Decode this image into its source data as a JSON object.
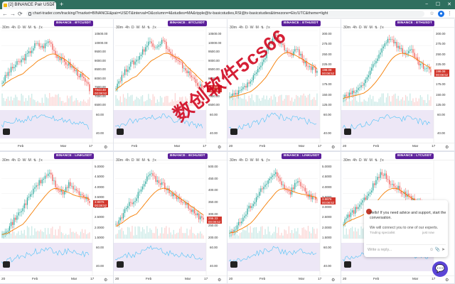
{
  "browser": {
    "tab_title": "[2] BINANCE Pair USDT",
    "url": "chart-trader.com/tracking/?market=BINANCE&pair=USDT&interval=D&column=4&studies=MA&ripple@tv-basicstudies,RSI@tv-basicstudies&timezone=Etc/UTC&theme=light",
    "new_tab": "+",
    "tab_close": "×",
    "back": "←",
    "forward": "→",
    "reload": "⟳",
    "minimize": "−",
    "maximize": "☐",
    "close": "✕"
  },
  "toolbar": {
    "items": [
      "30m",
      "4h",
      "D",
      "W",
      "M",
      "⇅",
      "ƒx"
    ]
  },
  "panels": [
    {
      "symbol": "BINANCE : BTCUSDT",
      "price_label": "7843.48",
      "sub_label": "00:08:52",
      "price_color": "#d1362c",
      "y_ticks": [
        "10500.00",
        "10000.00",
        "9500.00",
        "9000.00",
        "8500.00",
        "8000.00",
        "7500.00",
        "7000.00",
        "6500.00"
      ],
      "rsi_ticks": [
        "60.00",
        "40.00"
      ],
      "x_ticks": [
        "Feb",
        "Mar",
        "17"
      ]
    },
    {
      "symbol": "BINANCE : BTCUSDT",
      "price_label": "7843.48",
      "sub_label": "00:08:52",
      "price_color": "#d1362c",
      "y_ticks": [
        "10500.00",
        "10000.00",
        "9500.00",
        "9000.00",
        "8500.00",
        "8000.00",
        "7500.00",
        "7000.00",
        "6500.00"
      ],
      "rsi_ticks": [
        "60.00",
        "40.00"
      ],
      "x_ticks": [
        "Feb",
        "Mar",
        "17"
      ]
    },
    {
      "symbol": "BINANCE : ETHUSDT",
      "price_label": "198.08",
      "sub_label": "00:08:52",
      "price_color": "#d1362c",
      "y_ticks": [
        "300.00",
        "275.00",
        "250.00",
        "225.00",
        "200.00",
        "175.00",
        "150.00",
        "125.00"
      ],
      "rsi_ticks": [
        "60.00",
        "40.00"
      ],
      "x_ticks": [
        "20",
        "Feb",
        "Mar",
        "17"
      ]
    },
    {
      "symbol": "BINANCE : ETHUSDT",
      "price_label": "198.08",
      "sub_label": "00:08:52",
      "price_color": "#d1362c",
      "y_ticks": [
        "300.00",
        "275.00",
        "250.00",
        "225.00",
        "200.00",
        "175.00",
        "150.00",
        "125.00"
      ],
      "rsi_ticks": [
        "60.00",
        "40.00"
      ],
      "x_ticks": [
        "20",
        "Feb",
        "Mar",
        "17"
      ]
    },
    {
      "symbol": "BINANCE : LINKUSDT",
      "price_label": "3.9876",
      "sub_label": "00:08:52",
      "price_color": "#d1362c",
      "y_ticks": [
        "5.0000",
        "4.5000",
        "4.0000",
        "3.5000",
        "3.0000",
        "2.5000",
        "2.0000",
        "1.5000"
      ],
      "rsi_ticks": [
        "60.00",
        "40.00"
      ],
      "x_ticks": [
        "20",
        "Feb",
        "Mar",
        "17"
      ]
    },
    {
      "symbol": "BINANCE : BCHUSDT",
      "price_label": "266.33",
      "sub_label": "00:08:52",
      "price_color": "#d1362c",
      "y_ticks": [
        "500.00",
        "450.00",
        "400.00",
        "350.00",
        "300.00",
        "250.00",
        "200.00"
      ],
      "rsi_ticks": [
        "60.00",
        "40.00"
      ],
      "x_ticks": [
        "20",
        "Feb",
        "Mar",
        "17"
      ]
    },
    {
      "symbol": "BINANCE : LINKUSDT",
      "price_label": "3.9876",
      "sub_label": "00:08:52",
      "price_color": "#d1362c",
      "y_ticks": [
        "5.0000",
        "4.5000",
        "4.0000",
        "3.5000",
        "3.0000",
        "2.5000",
        "2.0000",
        "1.5000"
      ],
      "rsi_ticks": [
        "60.00",
        "40.00"
      ],
      "x_ticks": [
        "20",
        "Feb",
        "Mar",
        "17"
      ]
    },
    {
      "symbol": "BINANCE : LTCUSDT",
      "price_label": "",
      "sub_label": "",
      "price_color": "#d1362c",
      "y_ticks": [],
      "rsi_ticks": [],
      "x_ticks": [
        "20",
        "Feb",
        "Mar",
        "17"
      ]
    }
  ],
  "watermark_text": "数创软件5cs66",
  "chat": {
    "message": "Hello! If you need advice and support, start the conversation.",
    "connect": "We will connect you to one of our experts.",
    "specialist": "Trading specialist",
    "time": "just now",
    "placeholder": "Write a reply...",
    "icons": "☺ 📎 ➤"
  },
  "colors": {
    "up": "#26a69a",
    "down": "#ef5350",
    "ma": "#f57c00",
    "rsi": "#7e57c2",
    "rsi_band": "#ede7f6",
    "badge": "#5b1f9a"
  }
}
